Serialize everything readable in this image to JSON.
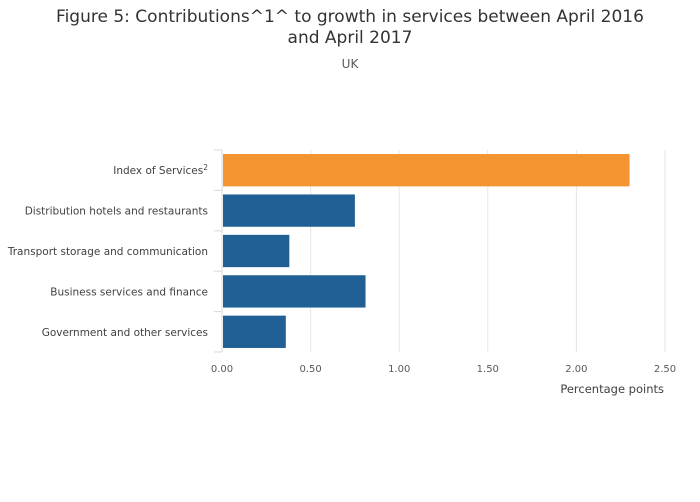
{
  "title": "Figure 5: Contributions^1^ to growth in services between April 2016 and April 2017",
  "subtitle": "UK",
  "colors": {
    "highlight": "#F39431",
    "bar": "#206095",
    "grid": "#e6e6e6",
    "axis": "#d9d9d9"
  },
  "chart_data": {
    "type": "bar",
    "orientation": "horizontal",
    "title": "Figure 5: Contributions^1^ to growth in services between April 2016 and April 2017",
    "subtitle": "UK",
    "xlabel": "Percentage points",
    "ylabel": "",
    "xlim": [
      0,
      2.5
    ],
    "grid": true,
    "categories": [
      {
        "main": "Index of Services",
        "sup": "2"
      },
      {
        "main": "Distribution hotels and restaurants",
        "sup": ""
      },
      {
        "main": "Transport storage and communication",
        "sup": ""
      },
      {
        "main": "Business services and finance",
        "sup": ""
      },
      {
        "main": "Government and other services",
        "sup": ""
      }
    ],
    "values": [
      2.3,
      0.75,
      0.38,
      0.81,
      0.36
    ],
    "highlight_index": 0,
    "ticks": [
      "0.00",
      "0.50",
      "1.00",
      "1.50",
      "2.00",
      "2.50"
    ],
    "tick_values": [
      0,
      0.5,
      1,
      1.5,
      2,
      2.5
    ]
  }
}
